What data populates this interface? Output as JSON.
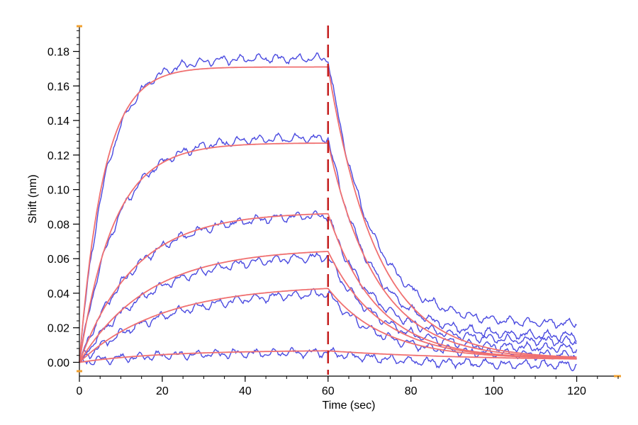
{
  "chart_data": {
    "type": "line",
    "title": "",
    "xlabel": "Time (sec)",
    "ylabel": "Shift (nm)",
    "xlim": [
      0,
      130
    ],
    "ylim": [
      -0.008,
      0.195
    ],
    "xticks": [
      0,
      20,
      40,
      60,
      80,
      100,
      120
    ],
    "yticks": [
      0.0,
      0.02,
      0.04,
      0.06,
      0.08,
      0.1,
      0.12,
      0.14,
      0.16,
      0.18
    ],
    "grid": false,
    "colors": {
      "fit": "#f07070",
      "measured": "#4a4ae0",
      "marker": "#c41e1e",
      "axis": "#000000",
      "axis_end_marker": "#f0a030"
    },
    "association_end_time": 60,
    "dissociation_end_time": 120,
    "marker_line_x": 60,
    "series": [
      {
        "kind": "fit",
        "plateau": 0.171,
        "assoc_rate": 0.17,
        "dissoc_rate": 0.085,
        "final": 0.002,
        "noise": 0.0
      },
      {
        "kind": "fit",
        "plateau": 0.127,
        "assoc_rate": 0.12,
        "dissoc_rate": 0.085,
        "final": 0.002,
        "noise": 0.0
      },
      {
        "kind": "fit",
        "plateau": 0.087,
        "assoc_rate": 0.075,
        "dissoc_rate": 0.085,
        "final": 0.002,
        "noise": 0.0
      },
      {
        "kind": "fit",
        "plateau": 0.066,
        "assoc_rate": 0.06,
        "dissoc_rate": 0.08,
        "final": 0.002,
        "noise": 0.0
      },
      {
        "kind": "fit",
        "plateau": 0.045,
        "assoc_rate": 0.05,
        "dissoc_rate": 0.075,
        "final": 0.002,
        "noise": 0.0
      },
      {
        "kind": "fit",
        "plateau": 0.007,
        "assoc_rate": 0.05,
        "dissoc_rate": 0.03,
        "final": 0.001,
        "noise": 0.0
      },
      {
        "kind": "measured",
        "plateau": 0.176,
        "assoc_rate": 0.15,
        "dissoc_rate": 0.1,
        "final": 0.022,
        "noise": 0.002
      },
      {
        "kind": "measured",
        "plateau": 0.13,
        "assoc_rate": 0.11,
        "dissoc_rate": 0.1,
        "final": 0.015,
        "noise": 0.002
      },
      {
        "kind": "measured",
        "plateau": 0.086,
        "assoc_rate": 0.075,
        "dissoc_rate": 0.095,
        "final": 0.012,
        "noise": 0.002
      },
      {
        "kind": "measured",
        "plateau": 0.063,
        "assoc_rate": 0.06,
        "dissoc_rate": 0.09,
        "final": 0.008,
        "noise": 0.002
      },
      {
        "kind": "measured",
        "plateau": 0.042,
        "assoc_rate": 0.05,
        "dissoc_rate": 0.085,
        "final": 0.004,
        "noise": 0.002
      },
      {
        "kind": "measured",
        "plateau": 0.006,
        "assoc_rate": 0.05,
        "dissoc_rate": 0.05,
        "final": -0.002,
        "noise": 0.002
      }
    ]
  }
}
